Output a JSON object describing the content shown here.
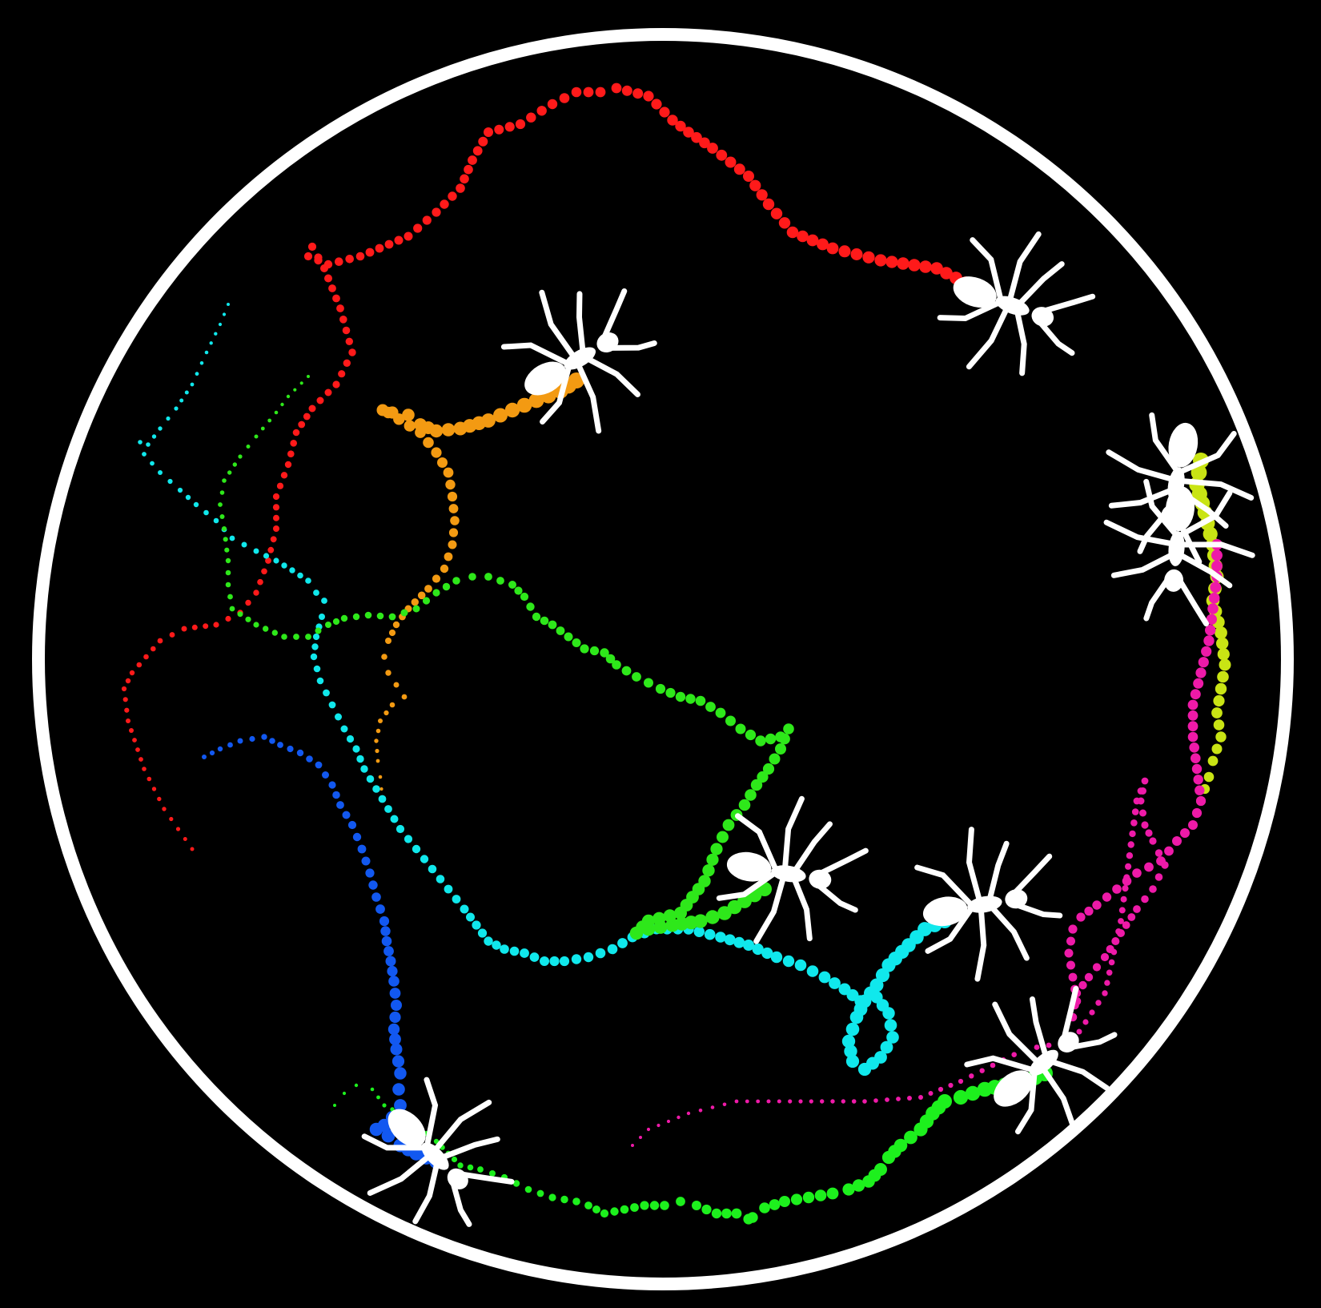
{
  "image": {
    "subject": "ant-trajectories-in-arena",
    "background": "#000000",
    "arena_color": "#ffffff"
  },
  "tracks": [
    {
      "id": "red",
      "color": "#ff1a1a"
    },
    {
      "id": "orange",
      "color": "#f39a12"
    },
    {
      "id": "cyan",
      "color": "#10e8ec"
    },
    {
      "id": "green",
      "color": "#2ee81a"
    },
    {
      "id": "blue",
      "color": "#1258f0"
    },
    {
      "id": "yellow",
      "color": "#c9e414"
    },
    {
      "id": "magenta",
      "color": "#ee1aa8"
    },
    {
      "id": "bright-green",
      "color": "#1df01d"
    }
  ],
  "ant_count": 8
}
